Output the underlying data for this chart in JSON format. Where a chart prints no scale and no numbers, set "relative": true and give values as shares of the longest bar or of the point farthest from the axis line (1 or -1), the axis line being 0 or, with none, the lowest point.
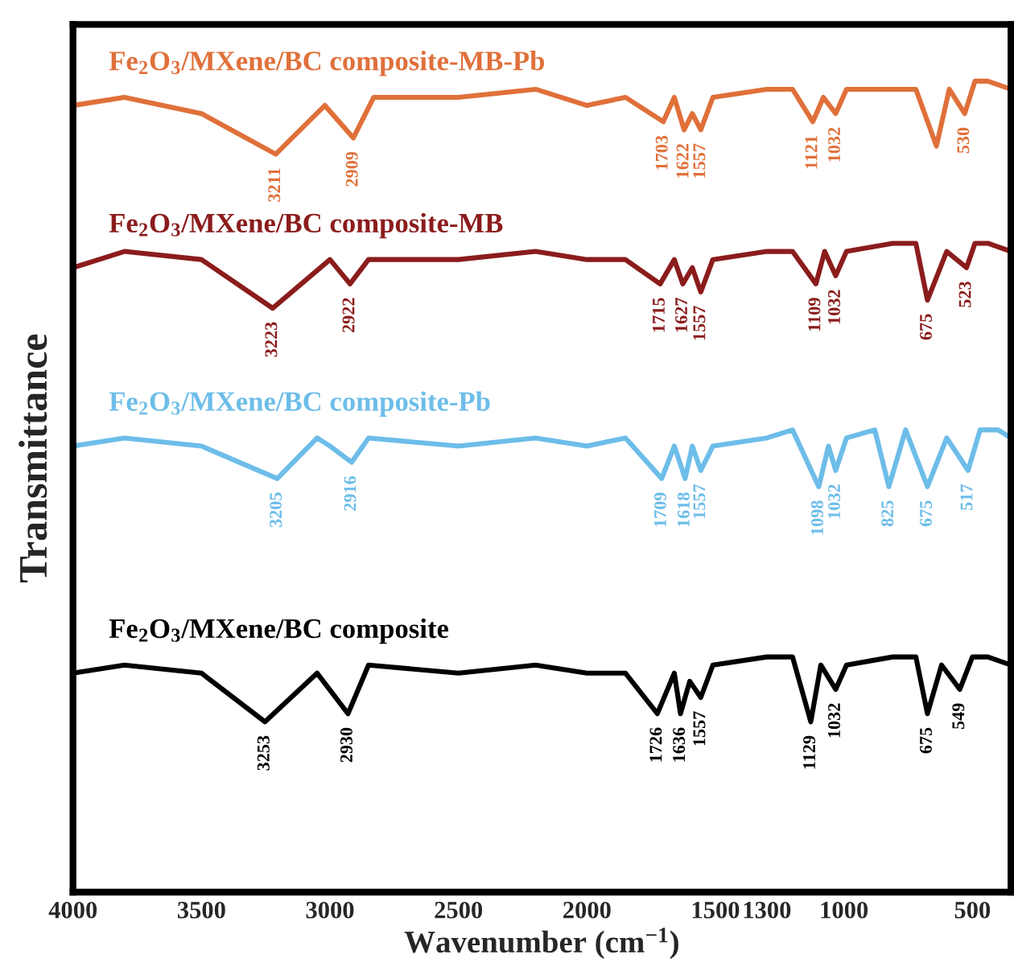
{
  "chart_data": {
    "type": "line",
    "relative": true,
    "xlabel": "Wavenumber (cm$^{−1}$)",
    "ylabel": "Transmittance",
    "xlim": [
      4000,
      350
    ],
    "xticks": [
      4000,
      3500,
      3000,
      2500,
      2000,
      1500,
      1300,
      1000,
      500
    ],
    "grid": false,
    "legend": false,
    "marker": "none",
    "line_style": "solid",
    "series": [
      {
        "name": "Fe$_{2}$O$_{3}$/MXene/BC composite-MB-Pb",
        "color": "#e0703a",
        "x": [
          4000,
          3800,
          3500,
          3211,
          3020,
          2909,
          2830,
          2500,
          2200,
          2000,
          1850,
          1703,
          1660,
          1622,
          1590,
          1557,
          1510,
          1300,
          1200,
          1121,
          1080,
          1032,
          990,
          810,
          720,
          640,
          590,
          530,
          490,
          440,
          350
        ],
        "values": [
          0.97,
          0.98,
          0.96,
          0.91,
          0.97,
          0.93,
          0.98,
          0.98,
          0.99,
          0.97,
          0.98,
          0.95,
          0.98,
          0.94,
          0.96,
          0.94,
          0.98,
          0.99,
          0.99,
          0.95,
          0.98,
          0.96,
          0.99,
          0.99,
          0.99,
          0.92,
          0.99,
          0.96,
          1.0,
          1.0,
          0.99
        ]
      },
      {
        "name": "Fe$_{2}$O$_{3}$/MXene/BC composite-MB",
        "color": "#8b1c1c",
        "x": [
          4000,
          3800,
          3500,
          3223,
          3000,
          2922,
          2850,
          2500,
          2200,
          2000,
          1850,
          1715,
          1660,
          1627,
          1590,
          1557,
          1510,
          1300,
          1200,
          1109,
          1075,
          1032,
          990,
          810,
          720,
          675,
          600,
          523,
          490,
          440,
          350
        ],
        "values": [
          0.77,
          0.79,
          0.78,
          0.72,
          0.78,
          0.75,
          0.78,
          0.78,
          0.79,
          0.78,
          0.78,
          0.75,
          0.78,
          0.75,
          0.77,
          0.74,
          0.78,
          0.79,
          0.79,
          0.75,
          0.79,
          0.76,
          0.79,
          0.8,
          0.8,
          0.73,
          0.79,
          0.77,
          0.8,
          0.8,
          0.79
        ]
      },
      {
        "name": "Fe$_{2}$O$_{3}$/MXene/BC composite-Pb",
        "color": "#6dbde9",
        "x": [
          4000,
          3800,
          3500,
          3205,
          3050,
          3000,
          2916,
          2850,
          2500,
          2200,
          2000,
          1850,
          1709,
          1660,
          1618,
          1590,
          1557,
          1510,
          1300,
          1200,
          1098,
          1060,
          1032,
          990,
          880,
          825,
          760,
          675,
          600,
          517,
          470,
          400,
          350
        ],
        "values": [
          0.55,
          0.56,
          0.55,
          0.51,
          0.56,
          0.55,
          0.53,
          0.56,
          0.55,
          0.56,
          0.55,
          0.56,
          0.51,
          0.55,
          0.51,
          0.55,
          0.52,
          0.55,
          0.56,
          0.57,
          0.5,
          0.55,
          0.52,
          0.56,
          0.57,
          0.5,
          0.57,
          0.5,
          0.56,
          0.52,
          0.57,
          0.57,
          0.56
        ]
      },
      {
        "name": "Fe$_{2}$O$_{3}$/MXene/BC composite",
        "color": "#000000",
        "x": [
          4000,
          3800,
          3500,
          3253,
          3050,
          2930,
          2850,
          2500,
          2200,
          2000,
          1850,
          1726,
          1660,
          1636,
          1600,
          1557,
          1510,
          1300,
          1200,
          1129,
          1090,
          1032,
          990,
          810,
          720,
          675,
          620,
          549,
          500,
          440,
          350
        ],
        "values": [
          0.27,
          0.28,
          0.27,
          0.21,
          0.27,
          0.22,
          0.28,
          0.27,
          0.28,
          0.27,
          0.27,
          0.22,
          0.27,
          0.22,
          0.26,
          0.24,
          0.28,
          0.29,
          0.29,
          0.21,
          0.28,
          0.25,
          0.28,
          0.29,
          0.29,
          0.22,
          0.28,
          0.25,
          0.29,
          0.29,
          0.28
        ]
      }
    ],
    "annotations": [
      {
        "text": "3211",
        "x": 3211,
        "y": 0.91
      },
      {
        "text": "2909",
        "x": 2909,
        "y": 0.93
      },
      {
        "text": "1703",
        "x": 1703,
        "y": 0.95
      },
      {
        "text": "1622",
        "x": 1622,
        "y": 0.94
      },
      {
        "text": "1557",
        "x": 1557,
        "y": 0.94
      },
      {
        "text": "1121",
        "x": 1121,
        "y": 0.95
      },
      {
        "text": "1032",
        "x": 1032,
        "y": 0.96
      },
      {
        "text": "530",
        "x": 530,
        "y": 0.96
      },
      {
        "text": "3223",
        "x": 3223,
        "y": 0.72
      },
      {
        "text": "2922",
        "x": 2922,
        "y": 0.75
      },
      {
        "text": "1715",
        "x": 1715,
        "y": 0.75
      },
      {
        "text": "1627",
        "x": 1627,
        "y": 0.75
      },
      {
        "text": "1557",
        "x": 1557,
        "y": 0.74
      },
      {
        "text": "1109",
        "x": 1109,
        "y": 0.75
      },
      {
        "text": "1032",
        "x": 1032,
        "y": 0.76
      },
      {
        "text": "675",
        "x": 675,
        "y": 0.73
      },
      {
        "text": "523",
        "x": 523,
        "y": 0.77
      },
      {
        "text": "3205",
        "x": 3205,
        "y": 0.51
      },
      {
        "text": "2916",
        "x": 2916,
        "y": 0.53
      },
      {
        "text": "1709",
        "x": 1709,
        "y": 0.51
      },
      {
        "text": "1618",
        "x": 1618,
        "y": 0.51
      },
      {
        "text": "1557",
        "x": 1557,
        "y": 0.52
      },
      {
        "text": "1098",
        "x": 1098,
        "y": 0.5
      },
      {
        "text": "1032",
        "x": 1032,
        "y": 0.52
      },
      {
        "text": "825",
        "x": 825,
        "y": 0.5
      },
      {
        "text": "675",
        "x": 675,
        "y": 0.5
      },
      {
        "text": "517",
        "x": 517,
        "y": 0.52
      },
      {
        "text": "3253",
        "x": 3253,
        "y": 0.21
      },
      {
        "text": "2930",
        "x": 2930,
        "y": 0.22
      },
      {
        "text": "1726",
        "x": 1726,
        "y": 0.22
      },
      {
        "text": "1636",
        "x": 1636,
        "y": 0.22
      },
      {
        "text": "1557",
        "x": 1557,
        "y": 0.24
      },
      {
        "text": "1129",
        "x": 1129,
        "y": 0.21
      },
      {
        "text": "1032",
        "x": 1032,
        "y": 0.25
      },
      {
        "text": "675",
        "x": 675,
        "y": 0.22
      },
      {
        "text": "549",
        "x": 549,
        "y": 0.25
      }
    ]
  }
}
